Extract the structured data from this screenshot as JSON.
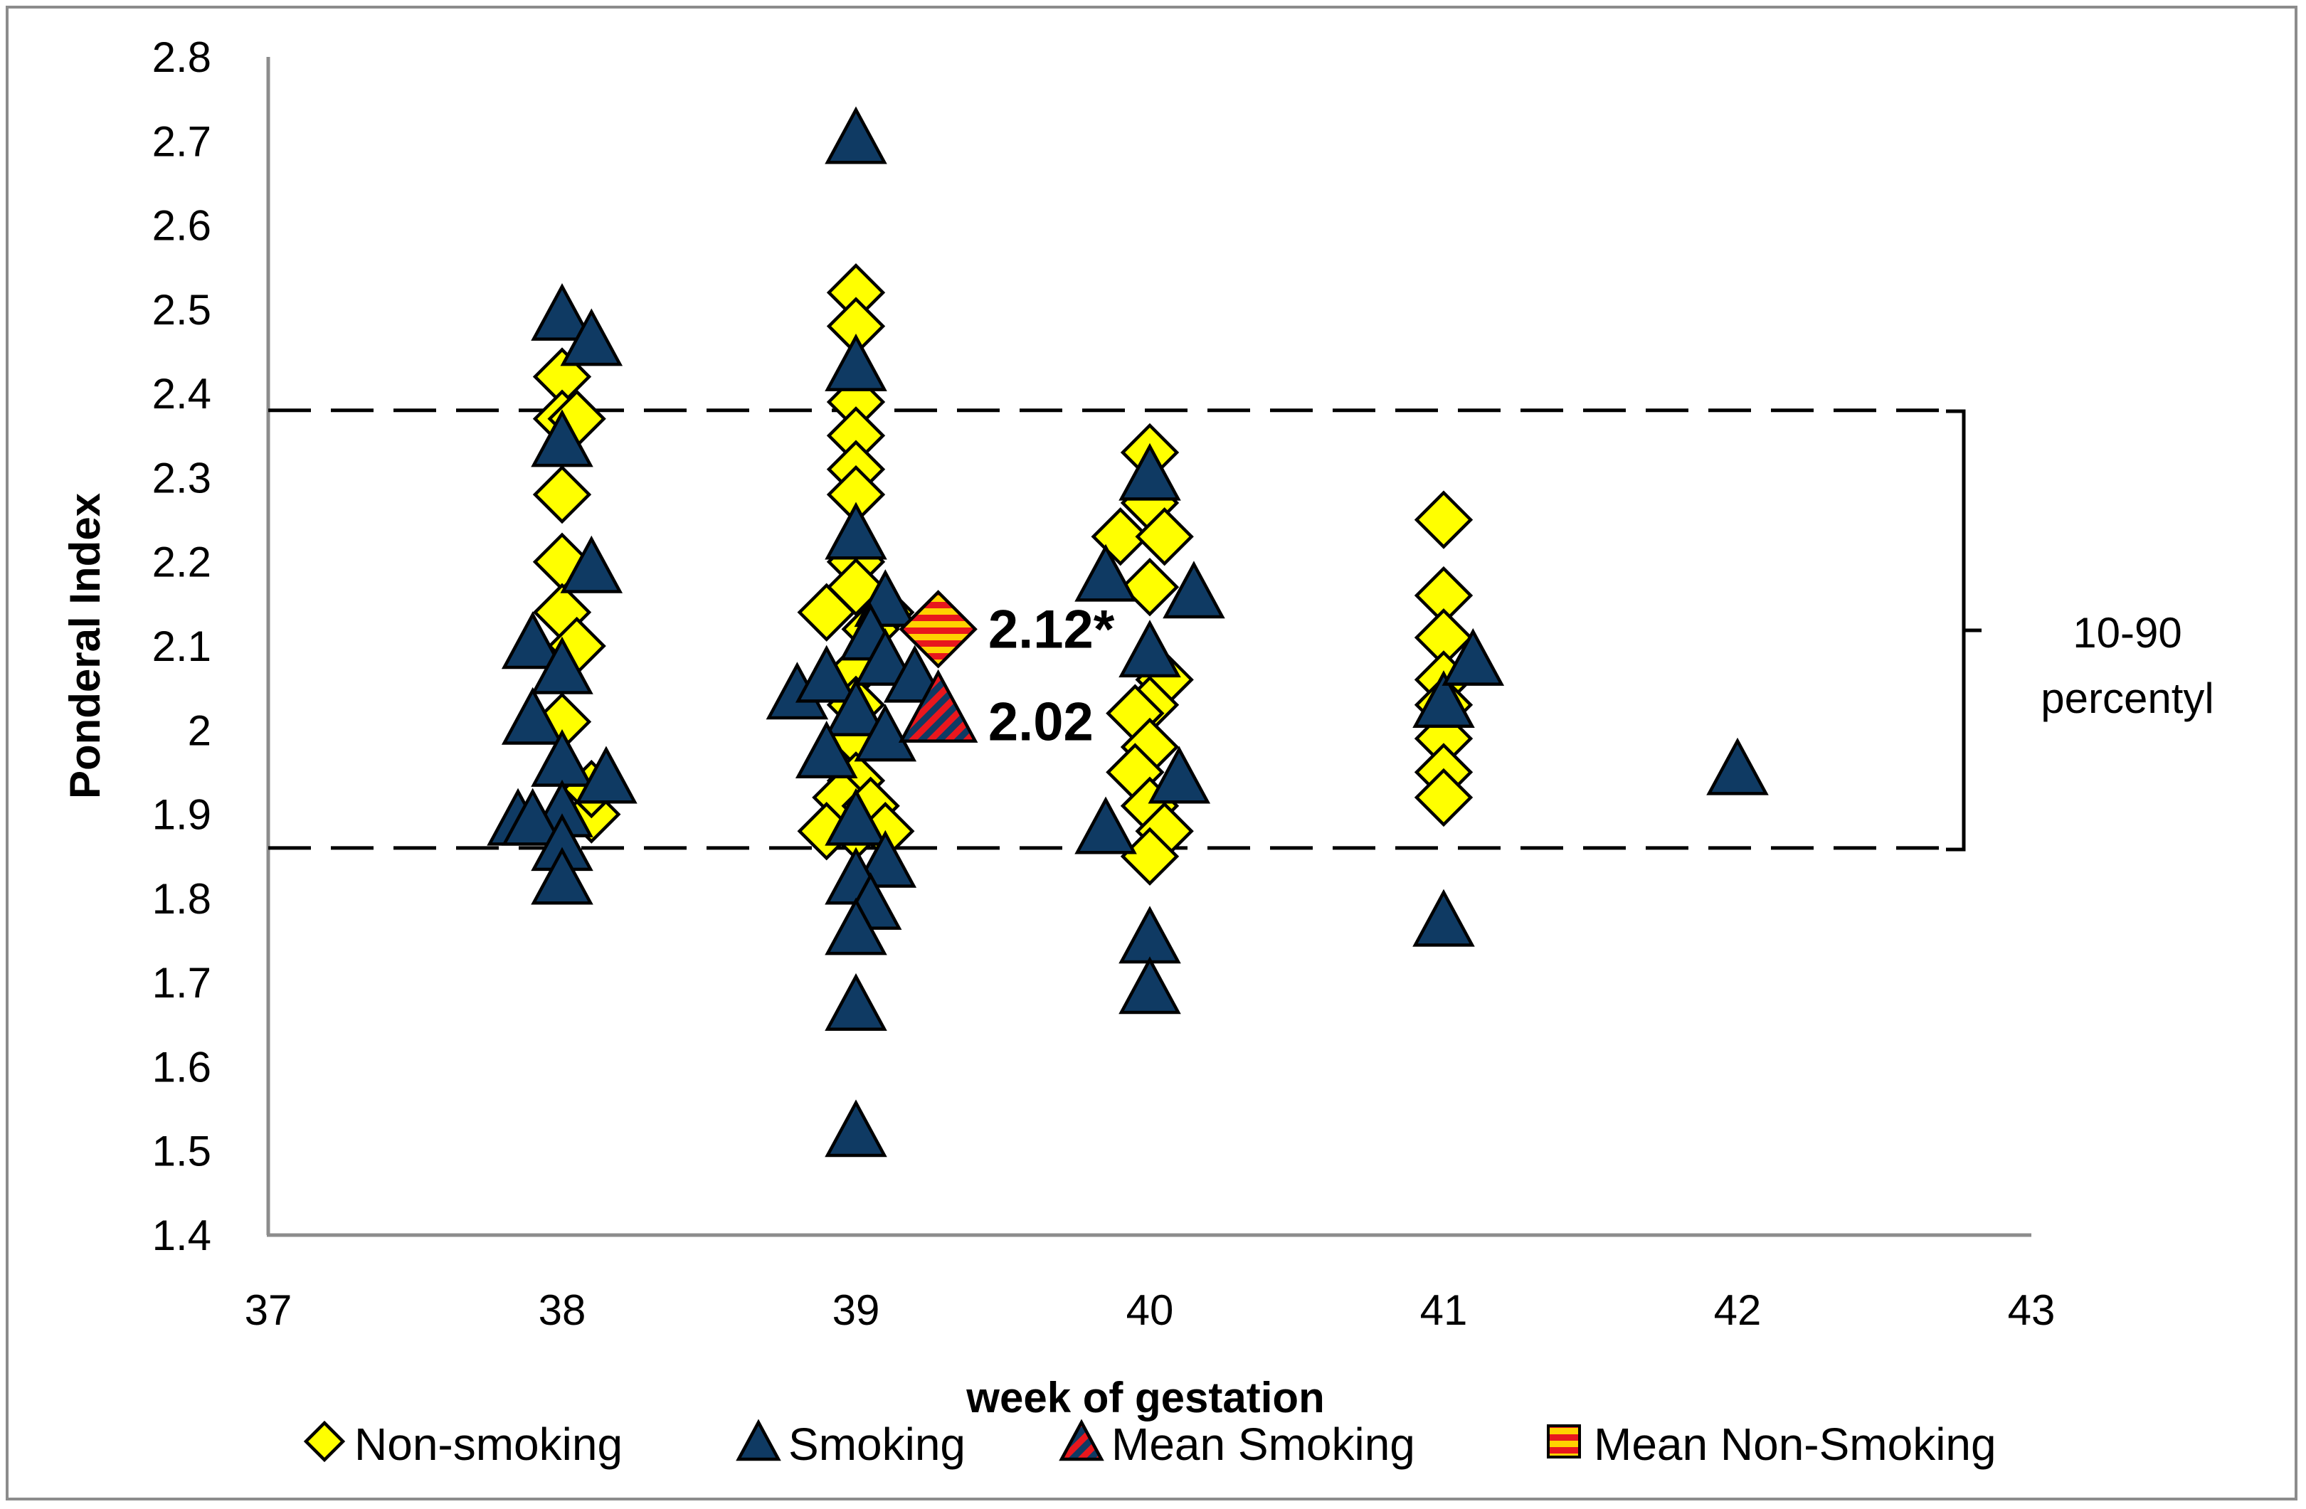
{
  "chart_data": {
    "type": "scatter",
    "title": "",
    "xlabel": "week of gestation",
    "ylabel": "Ponderal Index",
    "xlim": [
      37,
      43
    ],
    "ylim": [
      1.4,
      2.8
    ],
    "xticks": [
      "37",
      "38",
      "39",
      "40",
      "41",
      "42",
      "43"
    ],
    "yticks": [
      "1.4",
      "1.5",
      "1.6",
      "1.7",
      "1.8",
      "1.9",
      "2",
      "2.1",
      "2.2",
      "2.3",
      "2.4",
      "2.5",
      "2.6",
      "2.7",
      "2.8"
    ],
    "grid": false,
    "legend_position": "bottom",
    "colors": {
      "non_smoking_fill": "#ffff00",
      "smoking_fill": "#0f3a63",
      "mean_red": "#e8171d",
      "mean_orange": "#ffd200"
    },
    "series": [
      {
        "name": "Non-smoking",
        "marker": "diamond",
        "points": [
          [
            38.0,
            2.42
          ],
          [
            38.0,
            2.37
          ],
          [
            38.05,
            2.37
          ],
          [
            38.0,
            2.28
          ],
          [
            38.0,
            2.2
          ],
          [
            38.0,
            2.14
          ],
          [
            38.05,
            2.1
          ],
          [
            38.0,
            2.01
          ],
          [
            38.1,
            1.9
          ],
          [
            38.1,
            1.93
          ],
          [
            39.0,
            2.52
          ],
          [
            39.0,
            2.48
          ],
          [
            39.0,
            2.39
          ],
          [
            39.0,
            2.35
          ],
          [
            39.0,
            2.31
          ],
          [
            39.0,
            2.28
          ],
          [
            39.0,
            2.2
          ],
          [
            39.0,
            2.17
          ],
          [
            38.9,
            2.14
          ],
          [
            39.1,
            2.14
          ],
          [
            39.05,
            2.12
          ],
          [
            39.0,
            2.07
          ],
          [
            39.0,
            2.03
          ],
          [
            39.0,
            1.99
          ],
          [
            39.0,
            1.94
          ],
          [
            38.95,
            1.92
          ],
          [
            39.05,
            1.91
          ],
          [
            39.0,
            1.88
          ],
          [
            39.1,
            1.88
          ],
          [
            38.9,
            1.88
          ],
          [
            40.0,
            2.33
          ],
          [
            39.9,
            2.23
          ],
          [
            40.0,
            2.27
          ],
          [
            40.05,
            2.23
          ],
          [
            40.0,
            2.17
          ],
          [
            40.05,
            2.06
          ],
          [
            40.0,
            2.03
          ],
          [
            39.95,
            2.02
          ],
          [
            40.0,
            1.98
          ],
          [
            39.95,
            1.95
          ],
          [
            40.0,
            1.91
          ],
          [
            40.05,
            1.88
          ],
          [
            40.0,
            1.85
          ],
          [
            41.0,
            2.25
          ],
          [
            41.0,
            2.16
          ],
          [
            41.0,
            2.11
          ],
          [
            41.0,
            2.06
          ],
          [
            41.0,
            2.03
          ],
          [
            41.0,
            1.99
          ],
          [
            41.0,
            1.95
          ],
          [
            41.0,
            1.92
          ]
        ]
      },
      {
        "name": "Smoking",
        "marker": "triangle",
        "points": [
          [
            38.0,
            2.49
          ],
          [
            38.1,
            2.46
          ],
          [
            38.0,
            2.34
          ],
          [
            38.1,
            2.19
          ],
          [
            37.9,
            2.1
          ],
          [
            38.0,
            2.07
          ],
          [
            37.9,
            2.01
          ],
          [
            38.0,
            1.96
          ],
          [
            38.15,
            1.94
          ],
          [
            37.85,
            1.89
          ],
          [
            38.0,
            1.9
          ],
          [
            37.9,
            1.89
          ],
          [
            38.0,
            1.86
          ],
          [
            38.0,
            1.82
          ],
          [
            39.0,
            2.7
          ],
          [
            39.0,
            2.43
          ],
          [
            39.0,
            2.23
          ],
          [
            39.1,
            2.15
          ],
          [
            39.05,
            2.11
          ],
          [
            39.1,
            2.08
          ],
          [
            39.2,
            2.06
          ],
          [
            38.8,
            2.04
          ],
          [
            38.9,
            2.06
          ],
          [
            39.0,
            2.02
          ],
          [
            39.1,
            1.99
          ],
          [
            38.9,
            1.97
          ],
          [
            39.0,
            1.89
          ],
          [
            39.1,
            1.84
          ],
          [
            39.0,
            1.82
          ],
          [
            39.05,
            1.79
          ],
          [
            39.0,
            1.76
          ],
          [
            39.0,
            1.67
          ],
          [
            39.0,
            1.52
          ],
          [
            40.0,
            2.3
          ],
          [
            39.85,
            2.18
          ],
          [
            40.15,
            2.16
          ],
          [
            40.0,
            2.09
          ],
          [
            40.1,
            1.94
          ],
          [
            39.85,
            1.88
          ],
          [
            40.0,
            1.75
          ],
          [
            40.0,
            1.69
          ],
          [
            41.0,
            2.03
          ],
          [
            41.1,
            2.08
          ],
          [
            41.0,
            1.77
          ],
          [
            42.0,
            1.95
          ]
        ]
      },
      {
        "name": "Mean Smoking",
        "marker": "triangle-striped",
        "points": [
          [
            39.28,
            2.02
          ]
        ]
      },
      {
        "name": "Mean Non-Smoking",
        "marker": "square-striped",
        "points": [
          [
            39.28,
            2.12
          ]
        ]
      }
    ],
    "reference_lines": [
      {
        "type": "dashed-horizontal",
        "y": 2.38
      },
      {
        "type": "dashed-horizontal",
        "y": 1.86
      }
    ],
    "annotations": [
      {
        "text": "2.12*",
        "x": 39.45,
        "y": 2.12
      },
      {
        "text": "2.02",
        "x": 39.45,
        "y": 2.01
      }
    ],
    "band_label": [
      "10-90",
      "percentyl"
    ]
  }
}
